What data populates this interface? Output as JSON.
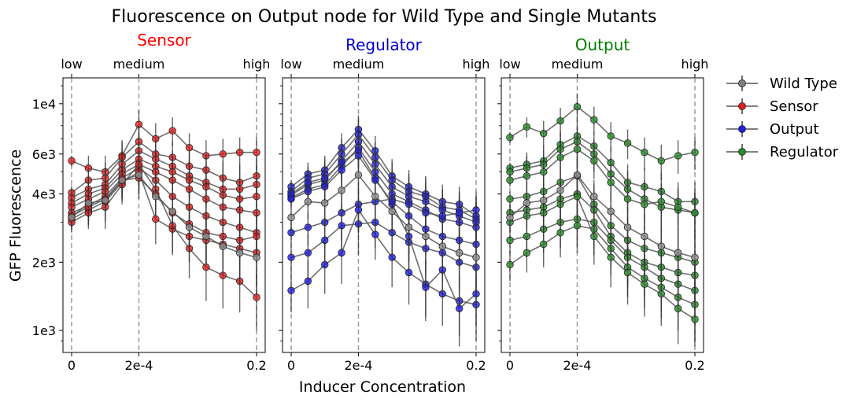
{
  "title": "Fluorescence on Output node for Wild Type and Single Mutants",
  "xlabel": "Inducer Concentration",
  "ylabel": "GFP Fluorescence",
  "legend": {
    "placement": "outside-right",
    "entries": [
      {
        "name": "Wild Type",
        "color": "#808080"
      },
      {
        "name": "Sensor",
        "color": "#e02020"
      },
      {
        "name": "Output",
        "color": "#2020e0"
      },
      {
        "name": "Regulator",
        "color": "#2a8a2a"
      }
    ]
  },
  "chart_data": [
    {
      "type": "line",
      "panel": "Sensor",
      "title": "Sensor",
      "title_color": "#ff0000",
      "color": "#e02020",
      "top_ticks": [
        "low",
        "medium",
        "high"
      ],
      "xticks": [
        "0",
        "2e-4",
        "0.2"
      ],
      "yticks": [
        "1e3",
        "2e3",
        "4e3",
        "6e3",
        "1e4"
      ],
      "ylim": [
        800,
        13000
      ],
      "yscale": "log",
      "x": [
        0,
        1,
        2,
        3,
        4,
        5,
        6,
        7,
        8,
        9,
        10,
        11
      ],
      "wild_type": {
        "name": "Wild Type",
        "values": [
          3150,
          3650,
          3750,
          4600,
          4850,
          3900,
          3350,
          2850,
          2600,
          2350,
          2200,
          2100
        ],
        "err": [
          350,
          600,
          700,
          800,
          900,
          700,
          700,
          650,
          650,
          600,
          600,
          650
        ]
      },
      "series": [
        {
          "values": [
            5600,
            5200,
            5000,
            5900,
            8100,
            7000,
            7600,
            6400,
            5900,
            6000,
            6100,
            6100
          ],
          "err": [
            300,
            700,
            900,
            1000,
            1300,
            1200,
            1100,
            1000,
            1000,
            1000,
            1000,
            1000
          ]
        },
        {
          "values": [
            4050,
            4600,
            4700,
            5800,
            6800,
            6000,
            5800,
            5300,
            5100,
            4700,
            4500,
            4800
          ],
          "err": [
            300,
            600,
            800,
            1000,
            1200,
            1000,
            1000,
            900,
            900,
            900,
            900,
            900
          ]
        },
        {
          "values": [
            3850,
            4200,
            4400,
            5400,
            6200,
            5700,
            5300,
            4800,
            4500,
            4200,
            4200,
            4400
          ],
          "err": [
            300,
            600,
            800,
            900,
            1100,
            1000,
            900,
            900,
            900,
            900,
            900,
            900
          ]
        },
        {
          "values": [
            3650,
            4000,
            4250,
            5100,
            5700,
            5300,
            5000,
            4600,
            4300,
            3950,
            3800,
            3900
          ],
          "err": [
            300,
            600,
            800,
            900,
            1000,
            900,
            900,
            800,
            800,
            800,
            800,
            800
          ]
        },
        {
          "values": [
            3500,
            3800,
            4100,
            4900,
            5400,
            5000,
            4600,
            4200,
            3800,
            3500,
            3400,
            3300
          ],
          "err": [
            300,
            600,
            700,
            800,
            900,
            900,
            800,
            800,
            750,
            700,
            700,
            700
          ]
        },
        {
          "values": [
            3300,
            3550,
            3900,
            4700,
            5200,
            4600,
            3900,
            3500,
            3200,
            3000,
            2850,
            2700
          ],
          "err": [
            300,
            600,
            700,
            800,
            900,
            900,
            800,
            750,
            700,
            650,
            650,
            650
          ]
        },
        {
          "values": [
            3100,
            3400,
            3700,
            4500,
            5000,
            3100,
            2800,
            2600,
            2500,
            2400,
            2300,
            2200
          ],
          "err": [
            300,
            500,
            700,
            800,
            900,
            700,
            650,
            600,
            600,
            600,
            600,
            600
          ]
        },
        {
          "values": [
            3000,
            3300,
            3500,
            4400,
            5400,
            4200,
            2900,
            2300,
            1900,
            1750,
            1650,
            1400
          ],
          "err": [
            300,
            500,
            700,
            800,
            900,
            800,
            700,
            600,
            550,
            500,
            450,
            400
          ]
        },
        {
          "values": [
            3200,
            3500,
            3800,
            4600,
            4700,
            4000,
            3300,
            2950,
            2700,
            2600,
            2500,
            2600
          ],
          "err": [
            300,
            500,
            700,
            800,
            900,
            800,
            700,
            650,
            650,
            600,
            600,
            600
          ]
        }
      ],
      "extra_last": [
        1350,
        1150
      ]
    },
    {
      "type": "line",
      "panel": "Regulator",
      "title": "Regulator",
      "title_color": "#0000cc",
      "color": "#2020e0",
      "top_ticks": [
        "low",
        "medium",
        "high"
      ],
      "xticks": [
        "0",
        "2e-4",
        "0.2"
      ],
      "yscale": "log",
      "ylim": [
        800,
        13000
      ],
      "x": [
        0,
        1,
        2,
        3,
        4,
        5,
        6,
        7,
        8,
        9,
        10,
        11
      ],
      "wild_type": {
        "name": "Wild Type",
        "values": [
          3150,
          3700,
          3650,
          4150,
          4850,
          3900,
          3350,
          2850,
          2600,
          2350,
          2200,
          2100
        ],
        "err": [
          350,
          600,
          700,
          800,
          900,
          700,
          700,
          650,
          650,
          600,
          600,
          650
        ]
      },
      "series": [
        {
          "values": [
            4300,
            4900,
            5100,
            6400,
            7700,
            6200,
            4800,
            4300,
            4000,
            3700,
            3600,
            3200
          ],
          "err": [
            300,
            600,
            800,
            1000,
            1200,
            1000,
            900,
            800,
            800,
            700,
            700,
            700
          ]
        },
        {
          "values": [
            4100,
            4700,
            4900,
            6000,
            7300,
            5800,
            4600,
            4100,
            3900,
            3500,
            3400,
            3100
          ],
          "err": [
            300,
            600,
            800,
            1000,
            1200,
            1000,
            900,
            800,
            800,
            700,
            700,
            700
          ]
        },
        {
          "values": [
            3950,
            4400,
            4600,
            5600,
            6800,
            5400,
            4300,
            3900,
            3700,
            3400,
            3200,
            3000
          ],
          "err": [
            300,
            600,
            800,
            900,
            1100,
            900,
            850,
            800,
            750,
            700,
            700,
            700
          ]
        },
        {
          "values": [
            3850,
            4200,
            4400,
            5300,
            6400,
            5000,
            4000,
            3700,
            3400,
            3100,
            3000,
            2850
          ],
          "err": [
            300,
            600,
            800,
            900,
            1100,
            900,
            800,
            750,
            700,
            700,
            650,
            650
          ]
        },
        {
          "values": [
            2700,
            2850,
            3000,
            3300,
            3600,
            3700,
            3800,
            3600,
            3300,
            3200,
            3300,
            3400
          ],
          "err": [
            300,
            500,
            700,
            800,
            900,
            800,
            800,
            750,
            700,
            700,
            700,
            700
          ]
        },
        {
          "values": [
            2100,
            2200,
            2500,
            2900,
            2950,
            3000,
            2700,
            2450,
            2300,
            2200,
            2000,
            1900
          ],
          "err": [
            300,
            500,
            600,
            700,
            800,
            700,
            650,
            600,
            550,
            550,
            500,
            500
          ]
        },
        {
          "values": [
            1500,
            1650,
            1950,
            2200,
            3400,
            2650,
            2100,
            1800,
            1600,
            1450,
            1350,
            1300
          ],
          "err": [
            300,
            400,
            500,
            600,
            700,
            600,
            550,
            500,
            450,
            400,
            400,
            400
          ]
        },
        {
          "values": [
            4000,
            4500,
            4700,
            5500,
            6200,
            4700,
            3600,
            2600,
            1550,
            1850,
            1250,
            1450
          ],
          "err": [
            300,
            600,
            800,
            900,
            1000,
            900,
            800,
            600,
            450,
            450,
            400,
            400
          ]
        },
        {
          "values": [
            3800,
            4100,
            4300,
            5100,
            5900,
            4600,
            3700,
            3200,
            2800,
            2600,
            2500,
            2400
          ],
          "err": [
            300,
            600,
            700,
            900,
            1000,
            900,
            800,
            700,
            650,
            600,
            600,
            600
          ]
        }
      ]
    },
    {
      "type": "line",
      "panel": "Output",
      "title": "Output",
      "title_color": "#008000",
      "color": "#2a8a2a",
      "top_ticks": [
        "low",
        "medium",
        "high"
      ],
      "xticks": [
        "0",
        "2e-4",
        "0.2"
      ],
      "yscale": "log",
      "ylim": [
        800,
        13000
      ],
      "x": [
        0,
        1,
        2,
        3,
        4,
        5,
        6,
        7,
        8,
        9,
        10,
        11
      ],
      "wild_type": {
        "name": "Wild Type",
        "values": [
          3150,
          3650,
          3750,
          4150,
          4850,
          3900,
          3350,
          2850,
          2600,
          2350,
          2200,
          2100
        ],
        "err": [
          350,
          600,
          700,
          800,
          900,
          700,
          700,
          650,
          650,
          600,
          600,
          650
        ]
      },
      "series": [
        {
          "values": [
            7100,
            7900,
            7400,
            8400,
            9700,
            8500,
            7200,
            6700,
            6100,
            5600,
            5900,
            6100
          ],
          "err": [
            400,
            800,
            1000,
            1200,
            1400,
            1200,
            1100,
            1000,
            1000,
            1000,
            1000,
            1000
          ]
        },
        {
          "values": [
            5200,
            5400,
            5600,
            6600,
            7200,
            6500,
            5500,
            4500,
            4300,
            4100,
            3700,
            3700
          ],
          "err": [
            300,
            700,
            900,
            1000,
            1200,
            1000,
            950,
            900,
            900,
            850,
            800,
            800
          ]
        },
        {
          "values": [
            5000,
            5200,
            5400,
            6300,
            6800,
            6000,
            4900,
            4200,
            3800,
            3500,
            3400,
            3300
          ],
          "err": [
            300,
            700,
            900,
            1000,
            1100,
            1000,
            900,
            850,
            800,
            800,
            750,
            750
          ]
        },
        {
          "values": [
            4600,
            4800,
            5000,
            5800,
            6300,
            5600,
            4500,
            3800,
            3600,
            3700,
            3500,
            3300
          ],
          "err": [
            300,
            600,
            800,
            950,
            1100,
            950,
            850,
            800,
            800,
            750,
            750,
            750
          ]
        },
        {
          "values": [
            3800,
            3900,
            4100,
            4500,
            4800,
            3600,
            2900,
            2500,
            2300,
            2200,
            2100,
            2000
          ],
          "err": [
            300,
            600,
            700,
            800,
            900,
            800,
            700,
            650,
            600,
            600,
            550,
            550
          ]
        },
        {
          "values": [
            3300,
            3400,
            3500,
            3800,
            4000,
            3400,
            2600,
            2200,
            2000,
            1900,
            1800,
            1750
          ],
          "err": [
            300,
            500,
            650,
            700,
            800,
            700,
            650,
            600,
            550,
            550,
            500,
            500
          ]
        },
        {
          "values": [
            2500,
            2600,
            2800,
            3000,
            3100,
            3000,
            2500,
            2100,
            1900,
            1700,
            1600,
            1500
          ],
          "err": [
            300,
            500,
            600,
            700,
            750,
            700,
            600,
            550,
            500,
            480,
            450,
            450
          ]
        },
        {
          "values": [
            1950,
            2200,
            2400,
            2700,
            2900,
            2800,
            2300,
            1900,
            1700,
            1550,
            1400,
            1300
          ],
          "err": [
            300,
            400,
            500,
            600,
            700,
            650,
            550,
            500,
            450,
            420,
            400,
            400
          ]
        },
        {
          "values": [
            3000,
            3200,
            3300,
            3600,
            3900,
            2600,
            2100,
            1800,
            1600,
            1450,
            1250,
            1120
          ],
          "err": [
            300,
            500,
            600,
            700,
            800,
            650,
            550,
            500,
            450,
            400,
            380,
            350
          ]
        }
      ]
    }
  ]
}
